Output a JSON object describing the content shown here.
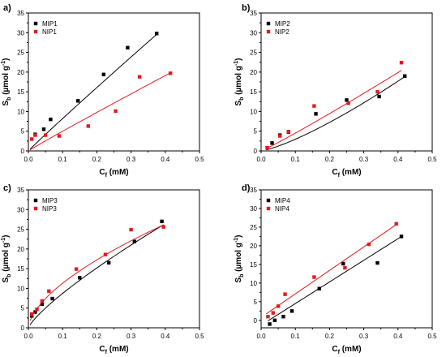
{
  "chart_data": [
    {
      "type": "scatter",
      "panel_label": "a)",
      "xlabel": "C",
      "xlabel_sub": "f",
      "xlabel_unit": " (mM)",
      "ylabel": "S",
      "ylabel_sub": "b",
      "ylabel_unit": " (µmol g",
      "ylabel_sup": "-1",
      "ylabel_close": ")",
      "xlim": [
        0,
        0.5
      ],
      "ylim": [
        0,
        35
      ],
      "xticks": [
        "0.0",
        "0.1",
        "0.2",
        "0.3",
        "0.4",
        "0.5"
      ],
      "yticks": [
        "0",
        "5",
        "10",
        "15",
        "20",
        "25",
        "30",
        "35"
      ],
      "legend_position": "top-left",
      "series": [
        {
          "name": "MIP1",
          "color": "#000000",
          "marker": "square",
          "x": [
            0.02,
            0.045,
            0.065,
            0.145,
            0.22,
            0.29,
            0.375
          ],
          "y": [
            4.2,
            5.5,
            8.0,
            12.7,
            19.4,
            26.2,
            29.8
          ],
          "fit": {
            "x": [
              0.005,
              0.375
            ],
            "model": "power",
            "params": {
              "a": 76.6,
              "b": 0.97
            }
          }
        },
        {
          "name": "NIP1",
          "color": "#e41a1c",
          "marker": "square",
          "x": [
            0.01,
            0.02,
            0.05,
            0.09,
            0.175,
            0.255,
            0.325,
            0.415
          ],
          "y": [
            3.0,
            4.0,
            4.0,
            3.8,
            6.3,
            10.1,
            18.8,
            19.7
          ],
          "fit": {
            "x": [
              0.005,
              0.42
            ],
            "model": "power",
            "params": {
              "a": 46.5,
              "b": 0.97
            }
          }
        }
      ]
    },
    {
      "type": "scatter",
      "panel_label": "b)",
      "xlabel": "C",
      "xlabel_sub": "f",
      "xlabel_unit": " (mM)",
      "ylabel": "S",
      "ylabel_sub": "b",
      "ylabel_unit": " (µmol g",
      "ylabel_sup": "-1",
      "ylabel_close": ")",
      "xlim": [
        0,
        0.5
      ],
      "ylim": [
        0,
        35
      ],
      "xticks": [
        "0.0",
        "0.1",
        "0.2",
        "0.3",
        "0.4",
        "0.5"
      ],
      "yticks": [
        "0",
        "5",
        "10",
        "15",
        "20",
        "25",
        "30",
        "35"
      ],
      "legend_position": "top-left",
      "series": [
        {
          "name": "MIP2",
          "color": "#000000",
          "marker": "square",
          "x": [
            0.018,
            0.032,
            0.055,
            0.08,
            0.16,
            0.25,
            0.345,
            0.42
          ],
          "y": [
            0.8,
            2.0,
            4.0,
            4.8,
            9.4,
            12.9,
            13.8,
            19.0
          ],
          "fit": {
            "x": [
              0.015,
              0.42
            ],
            "model": "power",
            "params": {
              "a": 57.7,
              "b": 1.29
            }
          }
        },
        {
          "name": "NIP2",
          "color": "#e41a1c",
          "marker": "square",
          "x": [
            0.018,
            0.055,
            0.08,
            0.155,
            0.255,
            0.34,
            0.41
          ],
          "y": [
            0.8,
            3.8,
            4.9,
            11.4,
            12.1,
            15.0,
            22.4
          ],
          "fit": {
            "x": [
              0.015,
              0.41
            ],
            "model": "power",
            "params": {
              "a": 53.0,
              "b": 1.07
            }
          }
        }
      ]
    },
    {
      "type": "scatter",
      "panel_label": "c)",
      "xlabel": "C",
      "xlabel_sub": "f",
      "xlabel_unit": " (mM)",
      "ylabel": "S",
      "ylabel_sub": "b",
      "ylabel_unit": " (µmol g",
      "ylabel_sup": "-1",
      "ylabel_close": ")",
      "xlim": [
        0,
        0.5
      ],
      "ylim": [
        0,
        35
      ],
      "xticks": [
        "0.0",
        "0.1",
        "0.2",
        "0.3",
        "0.4",
        "0.5"
      ],
      "yticks": [
        "0",
        "5",
        "10",
        "15",
        "20",
        "25",
        "30",
        "35"
      ],
      "legend_position": "top-left",
      "series": [
        {
          "name": "MIP3",
          "color": "#000000",
          "marker": "square",
          "x": [
            0.01,
            0.02,
            0.04,
            0.07,
            0.15,
            0.235,
            0.31,
            0.39
          ],
          "y": [
            3.0,
            4.0,
            6.0,
            7.4,
            12.7,
            16.5,
            21.9,
            27.0
          ],
          "fit": {
            "x": [
              0.005,
              0.395
            ],
            "model": "power",
            "params": {
              "a": 55.0,
              "b": 0.8
            }
          }
        },
        {
          "name": "NIP3",
          "color": "#e41a1c",
          "marker": "square",
          "x": [
            0.01,
            0.025,
            0.04,
            0.06,
            0.14,
            0.225,
            0.3,
            0.395
          ],
          "y": [
            3.5,
            4.7,
            6.8,
            9.3,
            14.9,
            18.6,
            24.9,
            25.6
          ],
          "fit": {
            "x": [
              0.005,
              0.395
            ],
            "model": "power",
            "params": {
              "a": 46.0,
              "b": 0.61
            }
          }
        }
      ]
    },
    {
      "type": "scatter",
      "panel_label": "d)",
      "xlabel": "C",
      "xlabel_sub": "f",
      "xlabel_unit": " (mM)",
      "ylabel": "S",
      "ylabel_sub": "b",
      "ylabel_unit": " (µmol g",
      "ylabel_sup": "-1",
      "ylabel_close": ")",
      "xlim": [
        0,
        0.5
      ],
      "ylim": [
        -2,
        35
      ],
      "xticks": [
        "0.0",
        "0.1",
        "0.2",
        "0.3",
        "0.4",
        "0.5"
      ],
      "yticks": [
        "0",
        "5",
        "10",
        "15",
        "20",
        "25",
        "30",
        "35"
      ],
      "legend_position": "top-left",
      "series": [
        {
          "name": "MIP4",
          "color": "#000000",
          "marker": "square",
          "x": [
            0.025,
            0.04,
            0.065,
            0.09,
            0.17,
            0.24,
            0.34,
            0.41
          ],
          "y": [
            -1.0,
            0.0,
            1.0,
            2.5,
            8.5,
            15.2,
            15.4,
            22.5
          ],
          "fit": {
            "x": [
              0.02,
              0.41
            ],
            "model": "linear",
            "params": {
              "m": 58.0,
              "c": -1.3
            }
          }
        },
        {
          "name": "NIP4",
          "color": "#e41a1c",
          "marker": "square",
          "x": [
            0.02,
            0.035,
            0.05,
            0.07,
            0.155,
            0.245,
            0.315,
            0.395
          ],
          "y": [
            1.0,
            2.0,
            3.8,
            7.0,
            11.6,
            14.1,
            20.4,
            25.9
          ],
          "fit": {
            "x": [
              0.015,
              0.395
            ],
            "model": "linear",
            "params": {
              "m": 63.0,
              "c": 0.8
            }
          }
        }
      ]
    }
  ]
}
